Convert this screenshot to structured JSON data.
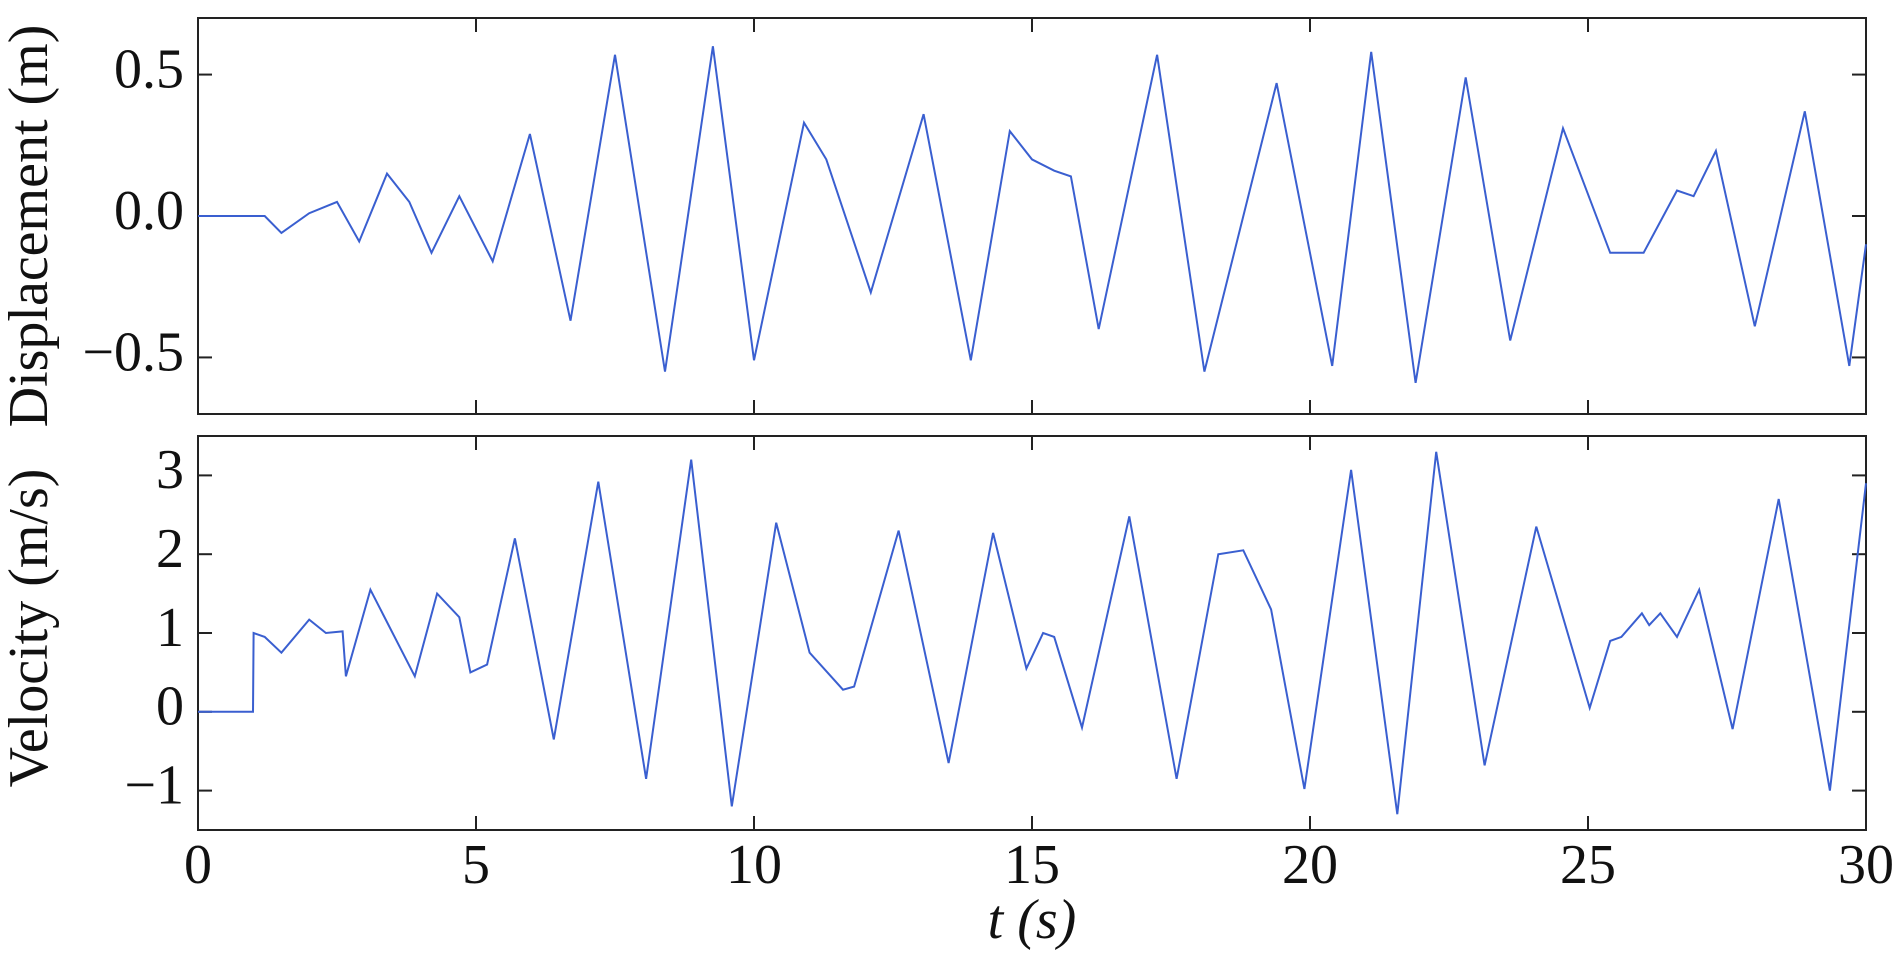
{
  "chart_data": [
    {
      "type": "line",
      "ylabel": "Displacement (m)",
      "xlim": [
        0,
        30
      ],
      "xticks": [
        0,
        5,
        10,
        15,
        20,
        25,
        30
      ],
      "ylim": [
        -0.7,
        0.7
      ],
      "yticks": [
        {
          "value": -0.5,
          "label": "−0.5"
        },
        {
          "value": 0,
          "label": "0.0"
        },
        0.5
      ],
      "x": [
        0,
        1.2,
        1.5,
        2.0,
        2.5,
        2.9,
        3.4,
        3.8,
        4.2,
        4.7,
        5.3,
        5.97,
        6.7,
        7.5,
        8.4,
        9.26,
        10.0,
        10.9,
        11.3,
        12.1,
        13.05,
        13.9,
        14.6,
        15.0,
        15.4,
        15.7,
        16.2,
        17.25,
        18.1,
        19.4,
        20.4,
        21.1,
        21.9,
        22.8,
        23.6,
        24.55,
        25.4,
        26.0,
        26.6,
        26.9,
        27.3,
        28.0,
        28.9,
        29.7,
        30
      ],
      "series": [
        {
          "name": "Displacement",
          "color": "#3a5fd0",
          "values": [
            0,
            0,
            -0.06,
            0.01,
            0.05,
            -0.09,
            0.15,
            0.05,
            -0.13,
            0.07,
            -0.16,
            0.29,
            -0.37,
            0.57,
            -0.55,
            0.6,
            -0.51,
            0.33,
            0.2,
            -0.27,
            0.36,
            -0.51,
            0.3,
            0.2,
            0.16,
            0.14,
            -0.4,
            0.57,
            -0.55,
            0.47,
            -0.53,
            0.58,
            -0.59,
            0.49,
            -0.44,
            0.31,
            -0.13,
            -0.13,
            0.09,
            0.07,
            0.23,
            -0.39,
            0.37,
            -0.53,
            -0.1
          ]
        }
      ]
    },
    {
      "type": "line",
      "ylabel": "Velocity (m/s)",
      "xlabel": "t (s)",
      "xlim": [
        0,
        30
      ],
      "xticks": [
        0,
        5,
        10,
        15,
        20,
        25,
        30
      ],
      "ylim": [
        -1.5,
        3.5
      ],
      "yticks": [
        {
          "value": -1,
          "label": "−1"
        },
        0,
        1,
        2,
        3
      ],
      "x": [
        0,
        0.99,
        1.0,
        1.2,
        1.5,
        2.0,
        2.3,
        2.6,
        2.66,
        3.1,
        3.9,
        4.3,
        4.7,
        4.9,
        5.2,
        5.7,
        6.4,
        7.2,
        8.06,
        8.87,
        9.6,
        10.4,
        11.0,
        11.6,
        11.8,
        12.6,
        13.5,
        14.3,
        14.9,
        15.2,
        15.4,
        15.9,
        16.75,
        17.6,
        18.35,
        18.8,
        19.3,
        19.9,
        20.74,
        21.57,
        22.27,
        23.14,
        24.07,
        25.03,
        25.4,
        25.6,
        25.97,
        26.1,
        26.3,
        26.6,
        27.0,
        27.6,
        28.43,
        29.35,
        30
      ],
      "series": [
        {
          "name": "Velocity",
          "color": "#3a5fd0",
          "values": [
            0,
            0,
            1.0,
            0.95,
            0.75,
            1.17,
            1.0,
            1.02,
            0.45,
            1.55,
            0.45,
            1.5,
            1.2,
            0.5,
            0.6,
            2.2,
            -0.35,
            2.92,
            -0.85,
            3.2,
            -1.2,
            2.4,
            0.75,
            0.28,
            0.32,
            2.3,
            -0.65,
            2.27,
            0.55,
            1.0,
            0.95,
            -0.2,
            2.48,
            -0.85,
            2.0,
            2.05,
            1.3,
            -0.98,
            3.07,
            -1.3,
            3.3,
            -0.68,
            2.35,
            0.05,
            0.9,
            0.95,
            1.25,
            1.1,
            1.25,
            0.95,
            1.55,
            -0.22,
            2.7,
            -1.0,
            2.9
          ]
        }
      ]
    }
  ]
}
